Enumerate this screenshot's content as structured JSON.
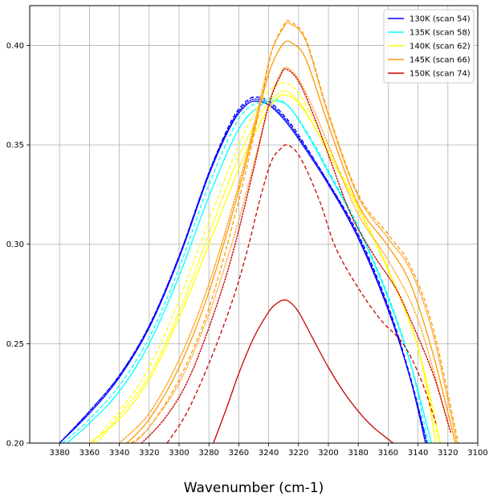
{
  "chart_data": {
    "type": "line",
    "title": "",
    "xlabel": "Wavenumber (cm-1)",
    "ylabel": "",
    "xlim": [
      3400,
      3100
    ],
    "ylim": [
      0.2,
      0.42
    ],
    "x_reversed": true,
    "grid": true,
    "legend_position": "top-right",
    "xticks": [
      3380,
      3360,
      3340,
      3320,
      3300,
      3280,
      3260,
      3240,
      3220,
      3200,
      3180,
      3160,
      3140,
      3120,
      3100
    ],
    "yticks": [
      0.2,
      0.25,
      0.3,
      0.35,
      0.4
    ],
    "ytick_labels": [
      "0.20",
      "0.25",
      "0.30",
      "0.35",
      "0.40"
    ],
    "series": [
      {
        "name": "130K (scan 54)",
        "color": "#0000ff",
        "style": "solid",
        "x": [
          3380,
          3360,
          3340,
          3320,
          3300,
          3280,
          3265,
          3255,
          3248,
          3240,
          3230,
          3220,
          3200,
          3180,
          3160,
          3145,
          3135
        ],
        "y": [
          0.2,
          0.215,
          0.233,
          0.258,
          0.293,
          0.335,
          0.36,
          0.37,
          0.372,
          0.37,
          0.363,
          0.353,
          0.33,
          0.303,
          0.267,
          0.232,
          0.2
        ]
      },
      {
        "name": "",
        "color": "#0000ff",
        "style": "dashed",
        "x": [
          3380,
          3360,
          3340,
          3320,
          3300,
          3280,
          3265,
          3255,
          3248,
          3240,
          3230,
          3220,
          3200,
          3180,
          3160,
          3145,
          3134
        ],
        "y": [
          0.2,
          0.216,
          0.234,
          0.259,
          0.294,
          0.336,
          0.362,
          0.372,
          0.374,
          0.372,
          0.365,
          0.355,
          0.331,
          0.305,
          0.269,
          0.233,
          0.2
        ]
      },
      {
        "name": "",
        "color": "#0000ff",
        "style": "dotted",
        "x": [
          3380,
          3360,
          3340,
          3320,
          3300,
          3280,
          3265,
          3255,
          3248,
          3240,
          3230,
          3220,
          3200,
          3180,
          3160,
          3145,
          3134
        ],
        "y": [
          0.2,
          0.216,
          0.234,
          0.259,
          0.294,
          0.336,
          0.361,
          0.371,
          0.373,
          0.371,
          0.364,
          0.354,
          0.331,
          0.304,
          0.268,
          0.232,
          0.2
        ]
      },
      {
        "name": "135K (scan 58)",
        "color": "#00ffff",
        "style": "solid",
        "x": [
          3375,
          3360,
          3340,
          3320,
          3300,
          3280,
          3260,
          3245,
          3235,
          3225,
          3210,
          3200,
          3180,
          3160,
          3145,
          3131
        ],
        "y": [
          0.2,
          0.21,
          0.226,
          0.25,
          0.284,
          0.324,
          0.358,
          0.37,
          0.372,
          0.368,
          0.35,
          0.336,
          0.308,
          0.273,
          0.24,
          0.2
        ]
      },
      {
        "name": "",
        "color": "#00ffff",
        "style": "dashed",
        "x": [
          3378,
          3360,
          3340,
          3320,
          3300,
          3280,
          3260,
          3245,
          3235,
          3225,
          3210,
          3200,
          3180,
          3160,
          3145,
          3133
        ],
        "y": [
          0.2,
          0.212,
          0.229,
          0.253,
          0.288,
          0.33,
          0.363,
          0.372,
          0.373,
          0.368,
          0.351,
          0.337,
          0.309,
          0.274,
          0.24,
          0.2
        ]
      },
      {
        "name": "140K (scan 62)",
        "color": "#ffff00",
        "style": "solid",
        "x": [
          3360,
          3340,
          3320,
          3300,
          3280,
          3260,
          3245,
          3235,
          3228,
          3220,
          3210,
          3200,
          3180,
          3160,
          3140,
          3128
        ],
        "y": [
          0.2,
          0.212,
          0.232,
          0.263,
          0.3,
          0.338,
          0.362,
          0.373,
          0.375,
          0.371,
          0.36,
          0.346,
          0.318,
          0.287,
          0.248,
          0.2
        ]
      },
      {
        "name": "",
        "color": "#ffff00",
        "style": "dashed",
        "x": [
          3358,
          3340,
          3320,
          3300,
          3280,
          3260,
          3245,
          3235,
          3228,
          3220,
          3210,
          3200,
          3180,
          3160,
          3140,
          3126
        ],
        "y": [
          0.2,
          0.216,
          0.238,
          0.272,
          0.312,
          0.35,
          0.372,
          0.38,
          0.381,
          0.376,
          0.363,
          0.348,
          0.319,
          0.288,
          0.248,
          0.2
        ]
      },
      {
        "name": "",
        "color": "#ffff00",
        "style": "dotted",
        "x": [
          3355,
          3340,
          3320,
          3300,
          3280,
          3260,
          3245,
          3235,
          3228,
          3220,
          3210,
          3200,
          3180,
          3160,
          3140,
          3125
        ],
        "y": [
          0.2,
          0.214,
          0.234,
          0.266,
          0.305,
          0.344,
          0.366,
          0.375,
          0.377,
          0.372,
          0.36,
          0.346,
          0.318,
          0.287,
          0.248,
          0.2
        ]
      },
      {
        "name": "145K (scan 66)",
        "color": "#ff9900",
        "style": "solid",
        "x": [
          3335,
          3320,
          3300,
          3280,
          3260,
          3245,
          3238,
          3230,
          3224,
          3215,
          3200,
          3180,
          3160,
          3145,
          3130,
          3115
        ],
        "y": [
          0.2,
          0.212,
          0.238,
          0.276,
          0.327,
          0.372,
          0.39,
          0.401,
          0.401,
          0.393,
          0.36,
          0.32,
          0.299,
          0.28,
          0.245,
          0.2
        ]
      },
      {
        "name": "",
        "color": "#ff9900",
        "style": "dashed",
        "x": [
          3332,
          3320,
          3300,
          3280,
          3260,
          3245,
          3238,
          3230,
          3226,
          3215,
          3200,
          3180,
          3160,
          3145,
          3130,
          3113
        ],
        "y": [
          0.2,
          0.208,
          0.232,
          0.268,
          0.322,
          0.372,
          0.397,
          0.41,
          0.412,
          0.403,
          0.366,
          0.325,
          0.305,
          0.289,
          0.258,
          0.2
        ]
      },
      {
        "name": "",
        "color": "#ff9900",
        "style": "dotted",
        "x": [
          3340,
          3320,
          3300,
          3280,
          3260,
          3245,
          3238,
          3230,
          3226,
          3215,
          3200,
          3180,
          3160,
          3145,
          3130,
          3114
        ],
        "y": [
          0.2,
          0.215,
          0.242,
          0.28,
          0.33,
          0.375,
          0.397,
          0.409,
          0.411,
          0.402,
          0.365,
          0.324,
          0.303,
          0.287,
          0.255,
          0.2
        ]
      },
      {
        "name": "",
        "color": "#ffaa33",
        "style": "dotted",
        "x": [
          3330,
          3320,
          3300,
          3280,
          3260,
          3245,
          3238,
          3232,
          3228,
          3220,
          3210,
          3200,
          3180,
          3160,
          3140,
          3120
        ],
        "y": [
          0.2,
          0.208,
          0.23,
          0.265,
          0.312,
          0.355,
          0.375,
          0.386,
          0.389,
          0.383,
          0.368,
          0.35,
          0.315,
          0.292,
          0.262,
          0.21
        ]
      },
      {
        "name": "150K (scan 74)",
        "color": "#cc0000",
        "style": "solid",
        "x": [
          3277,
          3268,
          3260,
          3250,
          3240,
          3235,
          3230,
          3226,
          3220,
          3210,
          3200,
          3190,
          3180,
          3170,
          3160,
          3155
        ],
        "y": [
          0.2,
          0.218,
          0.235,
          0.253,
          0.266,
          0.27,
          0.272,
          0.271,
          0.266,
          0.252,
          0.238,
          0.226,
          0.216,
          0.208,
          0.202,
          0.199
        ]
      },
      {
        "name": "",
        "color": "#cc0000",
        "style": "dashed",
        "x": [
          3308,
          3295,
          3280,
          3265,
          3255,
          3245,
          3238,
          3232,
          3228,
          3222,
          3215,
          3205,
          3195,
          3180,
          3165,
          3150,
          3138,
          3128
        ],
        "y": [
          0.2,
          0.215,
          0.24,
          0.27,
          0.295,
          0.325,
          0.342,
          0.348,
          0.35,
          0.347,
          0.338,
          0.32,
          0.298,
          0.278,
          0.262,
          0.25,
          0.232,
          0.21
        ]
      },
      {
        "name": "",
        "color": "#cc0000",
        "style": "dotted",
        "x": [
          3325,
          3310,
          3295,
          3280,
          3265,
          3250,
          3240,
          3232,
          3228,
          3220,
          3210,
          3200,
          3185,
          3170,
          3155,
          3145,
          3130,
          3118
        ],
        "y": [
          0.2,
          0.212,
          0.23,
          0.258,
          0.293,
          0.338,
          0.37,
          0.385,
          0.388,
          0.382,
          0.365,
          0.345,
          0.315,
          0.295,
          0.278,
          0.262,
          0.235,
          0.205
        ]
      }
    ]
  }
}
